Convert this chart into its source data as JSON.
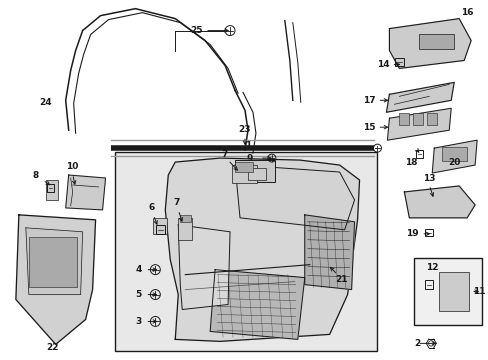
{
  "bg_color": "#ffffff",
  "fig_width": 4.89,
  "fig_height": 3.6,
  "dpi": 100,
  "line_color": "#1a1a1a",
  "label_fontsize": 6.5,
  "gray_fill": "#e8e8e8",
  "dark_gray": "#aaaaaa",
  "mid_gray": "#cccccc"
}
